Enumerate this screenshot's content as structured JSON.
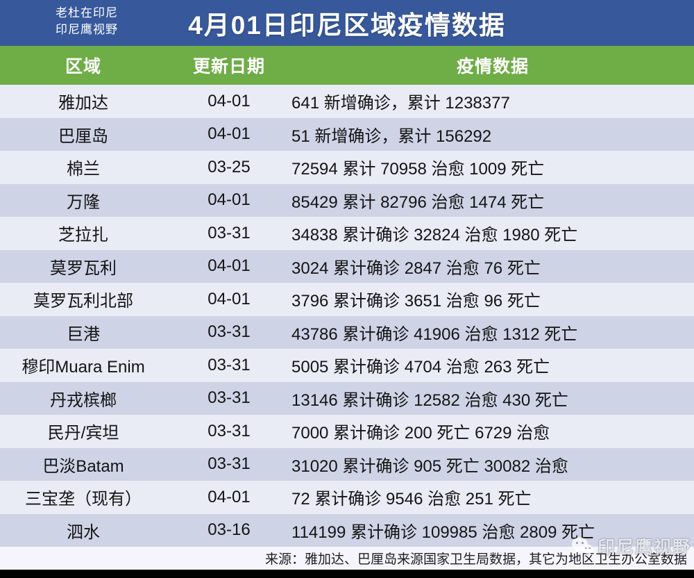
{
  "header": {
    "brand_line1": "老杜在印尼",
    "brand_line2": "印尼鹰视野",
    "title": "4月01日印尼区域疫情数据"
  },
  "chart_data": {
    "type": "table",
    "title": "4月01日印尼区域疫情数据",
    "columns": [
      "区域",
      "更新日期",
      "疫情数据"
    ],
    "rows": [
      [
        "雅加达",
        "04-01",
        "641 新增确诊，累计 1238377"
      ],
      [
        "巴厘岛",
        "04-01",
        "51 新增确诊，累计 156292"
      ],
      [
        "棉兰",
        "03-25",
        "72594 累计 70958 治愈 1009 死亡"
      ],
      [
        "万隆",
        "04-01",
        "85429 累计 82796 治愈 1474 死亡"
      ],
      [
        "芝拉扎",
        "03-31",
        "34838 累计确诊 32824 治愈 1980 死亡"
      ],
      [
        "莫罗瓦利",
        "04-01",
        "3024 累计确诊 2847 治愈 76 死亡"
      ],
      [
        "莫罗瓦利北部",
        "04-01",
        "3796 累计确诊 3651 治愈 96 死亡"
      ],
      [
        "巨港",
        "03-31",
        "43786 累计确诊 41906 治愈 1312 死亡"
      ],
      [
        "穆印Muara Enim",
        "03-31",
        "5005 累计确诊 4704 治愈 263 死亡"
      ],
      [
        "丹戎槟榔",
        "03-31",
        "13146 累计确诊 12582 治愈 430 死亡"
      ],
      [
        "民丹/宾坦",
        "03-31",
        "7000 累计确诊 200 死亡 6729 治愈"
      ],
      [
        "巴淡Batam",
        "03-31",
        "31020 累计确诊 905 死亡 30082 治愈"
      ],
      [
        "三宝垄（现有）",
        "04-01",
        "72 累计确诊 9546 治愈 251 死亡"
      ],
      [
        "泗水",
        "03-16",
        "114199 累计确诊 109985 治愈 2809 死亡"
      ]
    ],
    "layout": {
      "banded_rows": true,
      "header_fill": "#6FAD47"
    }
  },
  "footer": {
    "source": "来源：雅加达、巴厘岛来源国家卫生局数据，其它为地区卫生办公室数据"
  },
  "watermark": {
    "icon": "wechat-icon",
    "label": "印尼鹰视野"
  },
  "colors": {
    "top_bar": "#37589B",
    "header_green": "#6FAD47",
    "row_light": "#E9EBF5",
    "row_dark": "#CFD3E6",
    "footer_bg": "#F5F5FB",
    "bottom_bar": "#000000"
  }
}
